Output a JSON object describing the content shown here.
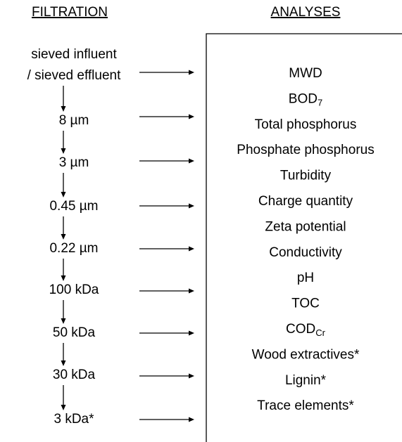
{
  "header": {
    "left": "FILTRATION",
    "right": "ANALYSES"
  },
  "filtration": [
    [
      "sieved influent",
      "/ sieved effluent"
    ],
    [
      "8 µm"
    ],
    [
      "3 µm"
    ],
    [
      "0.45 µm"
    ],
    [
      "0.22 µm"
    ],
    [
      "100 kDa"
    ],
    [
      "50 kDa"
    ],
    [
      "30 kDa"
    ],
    [
      "3 kDa*"
    ]
  ],
  "analyses": [
    {
      "text": "MWD"
    },
    {
      "text": "BOD",
      "sub": "7"
    },
    {
      "text": "Total phosphorus"
    },
    {
      "text": "Phosphate phosphorus"
    },
    {
      "text": "Turbidity"
    },
    {
      "text": "Charge quantity"
    },
    {
      "text": "Zeta potential"
    },
    {
      "text": "Conductivity"
    },
    {
      "text": "pH"
    },
    {
      "text": "TOC"
    },
    {
      "text": "COD",
      "sub": "Cr"
    },
    {
      "text": "Wood extractives*"
    },
    {
      "text": "Lignin*"
    },
    {
      "text": "Trace elements*"
    }
  ]
}
